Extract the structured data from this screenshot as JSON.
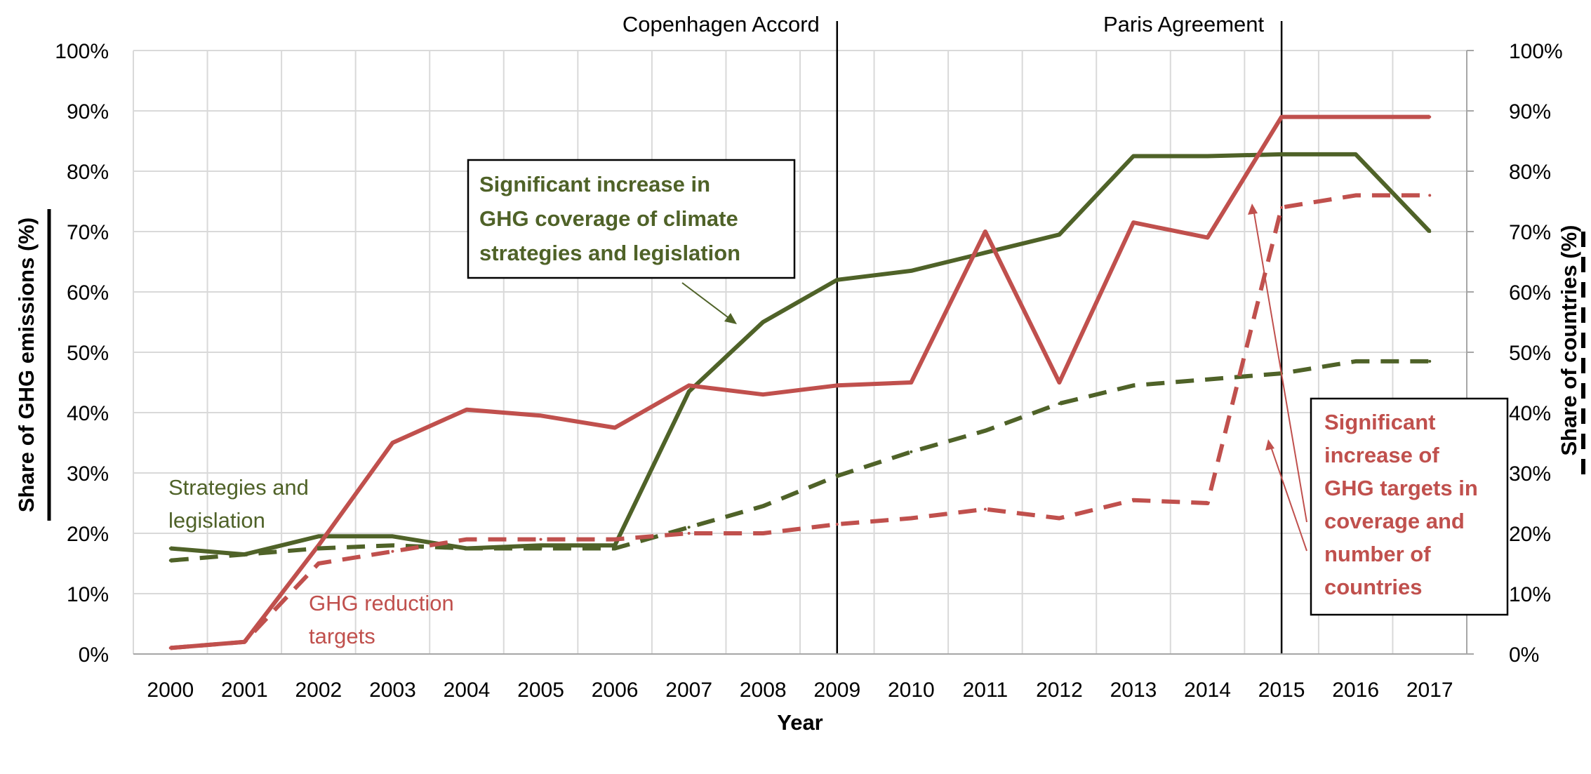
{
  "chart_data": {
    "type": "line",
    "xlabel": "Year",
    "ylabel_left": "Share of GHG emissions (%)",
    "ylabel_right": "Share of countries (%)",
    "categories": [
      "2000",
      "2001",
      "2002",
      "2003",
      "2004",
      "2005",
      "2006",
      "2007",
      "2008",
      "2009",
      "2010",
      "2011",
      "2012",
      "2013",
      "2014",
      "2015",
      "2016",
      "2017"
    ],
    "y_ticks": [
      "0%",
      "10%",
      "20%",
      "30%",
      "40%",
      "50%",
      "60%",
      "70%",
      "80%",
      "90%",
      "100%"
    ],
    "right_ticks": [
      "0%",
      "10%",
      "20%",
      "30%",
      "40%",
      "50%",
      "60%",
      "70%",
      "80%",
      "90%",
      "100%"
    ],
    "ylim": [
      0,
      100
    ],
    "grid": true,
    "colors": {
      "green": "#4f6228",
      "red": "#c0504d"
    },
    "series": [
      {
        "key": "strategies_ghg",
        "axis": "left",
        "style": "solid",
        "color": "green",
        "values": [
          17.5,
          16.5,
          19.5,
          19.5,
          17.5,
          18,
          18,
          43.5,
          55,
          62,
          63.5,
          66.5,
          69.5,
          82.5,
          82.5,
          82.8,
          82.8,
          70
        ]
      },
      {
        "key": "targets_ghg",
        "axis": "left",
        "style": "solid",
        "color": "red",
        "values": [
          1,
          2,
          18,
          35,
          40.5,
          39.5,
          37.5,
          44.5,
          43,
          44.5,
          45,
          70,
          45,
          71.5,
          69,
          89,
          89,
          89
        ]
      },
      {
        "key": "strategies_countries",
        "axis": "right",
        "style": "dashed",
        "color": "green",
        "values": [
          15.5,
          16.5,
          17.5,
          18,
          17.5,
          17.5,
          17.5,
          21,
          24.5,
          29.5,
          33.5,
          37,
          41.5,
          44.5,
          45.5,
          46.5,
          48.5,
          48.5
        ]
      },
      {
        "key": "targets_countries",
        "axis": "right",
        "style": "dashed",
        "color": "red",
        "values": [
          1,
          2,
          15,
          17,
          19,
          19,
          19,
          20,
          20,
          21.5,
          22.5,
          24,
          22.5,
          25.5,
          25,
          74,
          76,
          76
        ]
      }
    ],
    "events": [
      {
        "year": "2009",
        "label": "Copenhagen Accord"
      },
      {
        "year": "2015",
        "label": "Paris Agreement"
      }
    ],
    "series_labels": {
      "strategies": [
        "Strategies and",
        "legislation"
      ],
      "targets": [
        "GHG reduction",
        "targets"
      ]
    },
    "callouts": {
      "green": [
        "Significant increase in",
        "GHG coverage of climate",
        "strategies and legislation"
      ],
      "red": [
        "Significant",
        "increase of",
        "GHG targets in",
        "coverage and",
        "number of",
        "countries"
      ]
    }
  }
}
